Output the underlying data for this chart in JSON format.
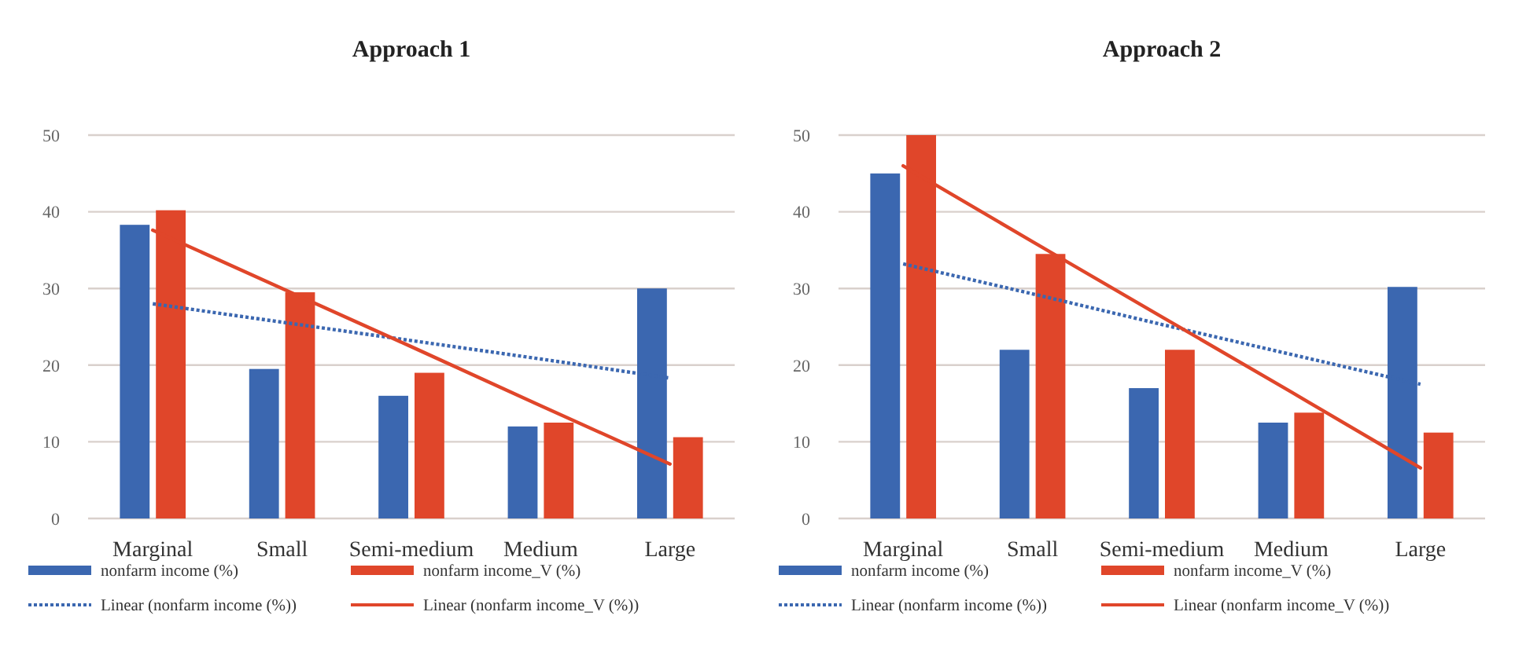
{
  "chart_data": [
    {
      "type": "bar",
      "title": "Approach 1",
      "categories": [
        "Marginal",
        "Small",
        "Semi-medium",
        "Medium",
        "Large"
      ],
      "ylim": [
        0,
        50
      ],
      "yticks": [
        0,
        10,
        20,
        30,
        40,
        50
      ],
      "grid": "y",
      "legend": "bottom",
      "series": [
        {
          "name": "nonfarm income (%)",
          "color": "#3b67b0",
          "values": [
            38.3,
            19.5,
            16,
            12,
            30
          ]
        },
        {
          "name": "nonfarm income_V (%)",
          "color": "#e0462a",
          "values": [
            40.2,
            29.5,
            19,
            12.5,
            10.6
          ]
        },
        {
          "name": "Linear (nonfarm income (%))",
          "type": "line",
          "line_style": "dotted",
          "color": "#3b67b0",
          "values": [
            28,
            25.6,
            23.2,
            20.8,
            18.3
          ]
        },
        {
          "name": "Linear (nonfarm income_V (%))",
          "type": "line",
          "line_style": "solid",
          "color": "#e0462a",
          "values": [
            37.6,
            30,
            22.4,
            14.7,
            7.1
          ]
        }
      ]
    },
    {
      "type": "bar",
      "title": "Approach 2",
      "categories": [
        "Marginal",
        "Small",
        "Semi-medium",
        "Medium",
        "Large"
      ],
      "ylim": [
        0,
        50
      ],
      "yticks": [
        0,
        10,
        20,
        30,
        40,
        50
      ],
      "grid": "y",
      "legend": "bottom",
      "series": [
        {
          "name": "nonfarm income (%)",
          "color": "#3b67b0",
          "values": [
            45,
            22,
            17,
            12.5,
            30.2
          ]
        },
        {
          "name": "nonfarm income_V (%)",
          "color": "#e0462a",
          "values": [
            50,
            34.5,
            22,
            13.8,
            11.2
          ]
        },
        {
          "name": "Linear (nonfarm income (%))",
          "type": "line",
          "line_style": "dotted",
          "color": "#3b67b0",
          "values": [
            33.2,
            29.3,
            25.3,
            21.4,
            17.5
          ]
        },
        {
          "name": "Linear (nonfarm income_V (%))",
          "type": "line",
          "line_style": "solid",
          "color": "#e0462a",
          "values": [
            46,
            36.1,
            26.3,
            16.5,
            6.6
          ]
        }
      ]
    }
  ]
}
